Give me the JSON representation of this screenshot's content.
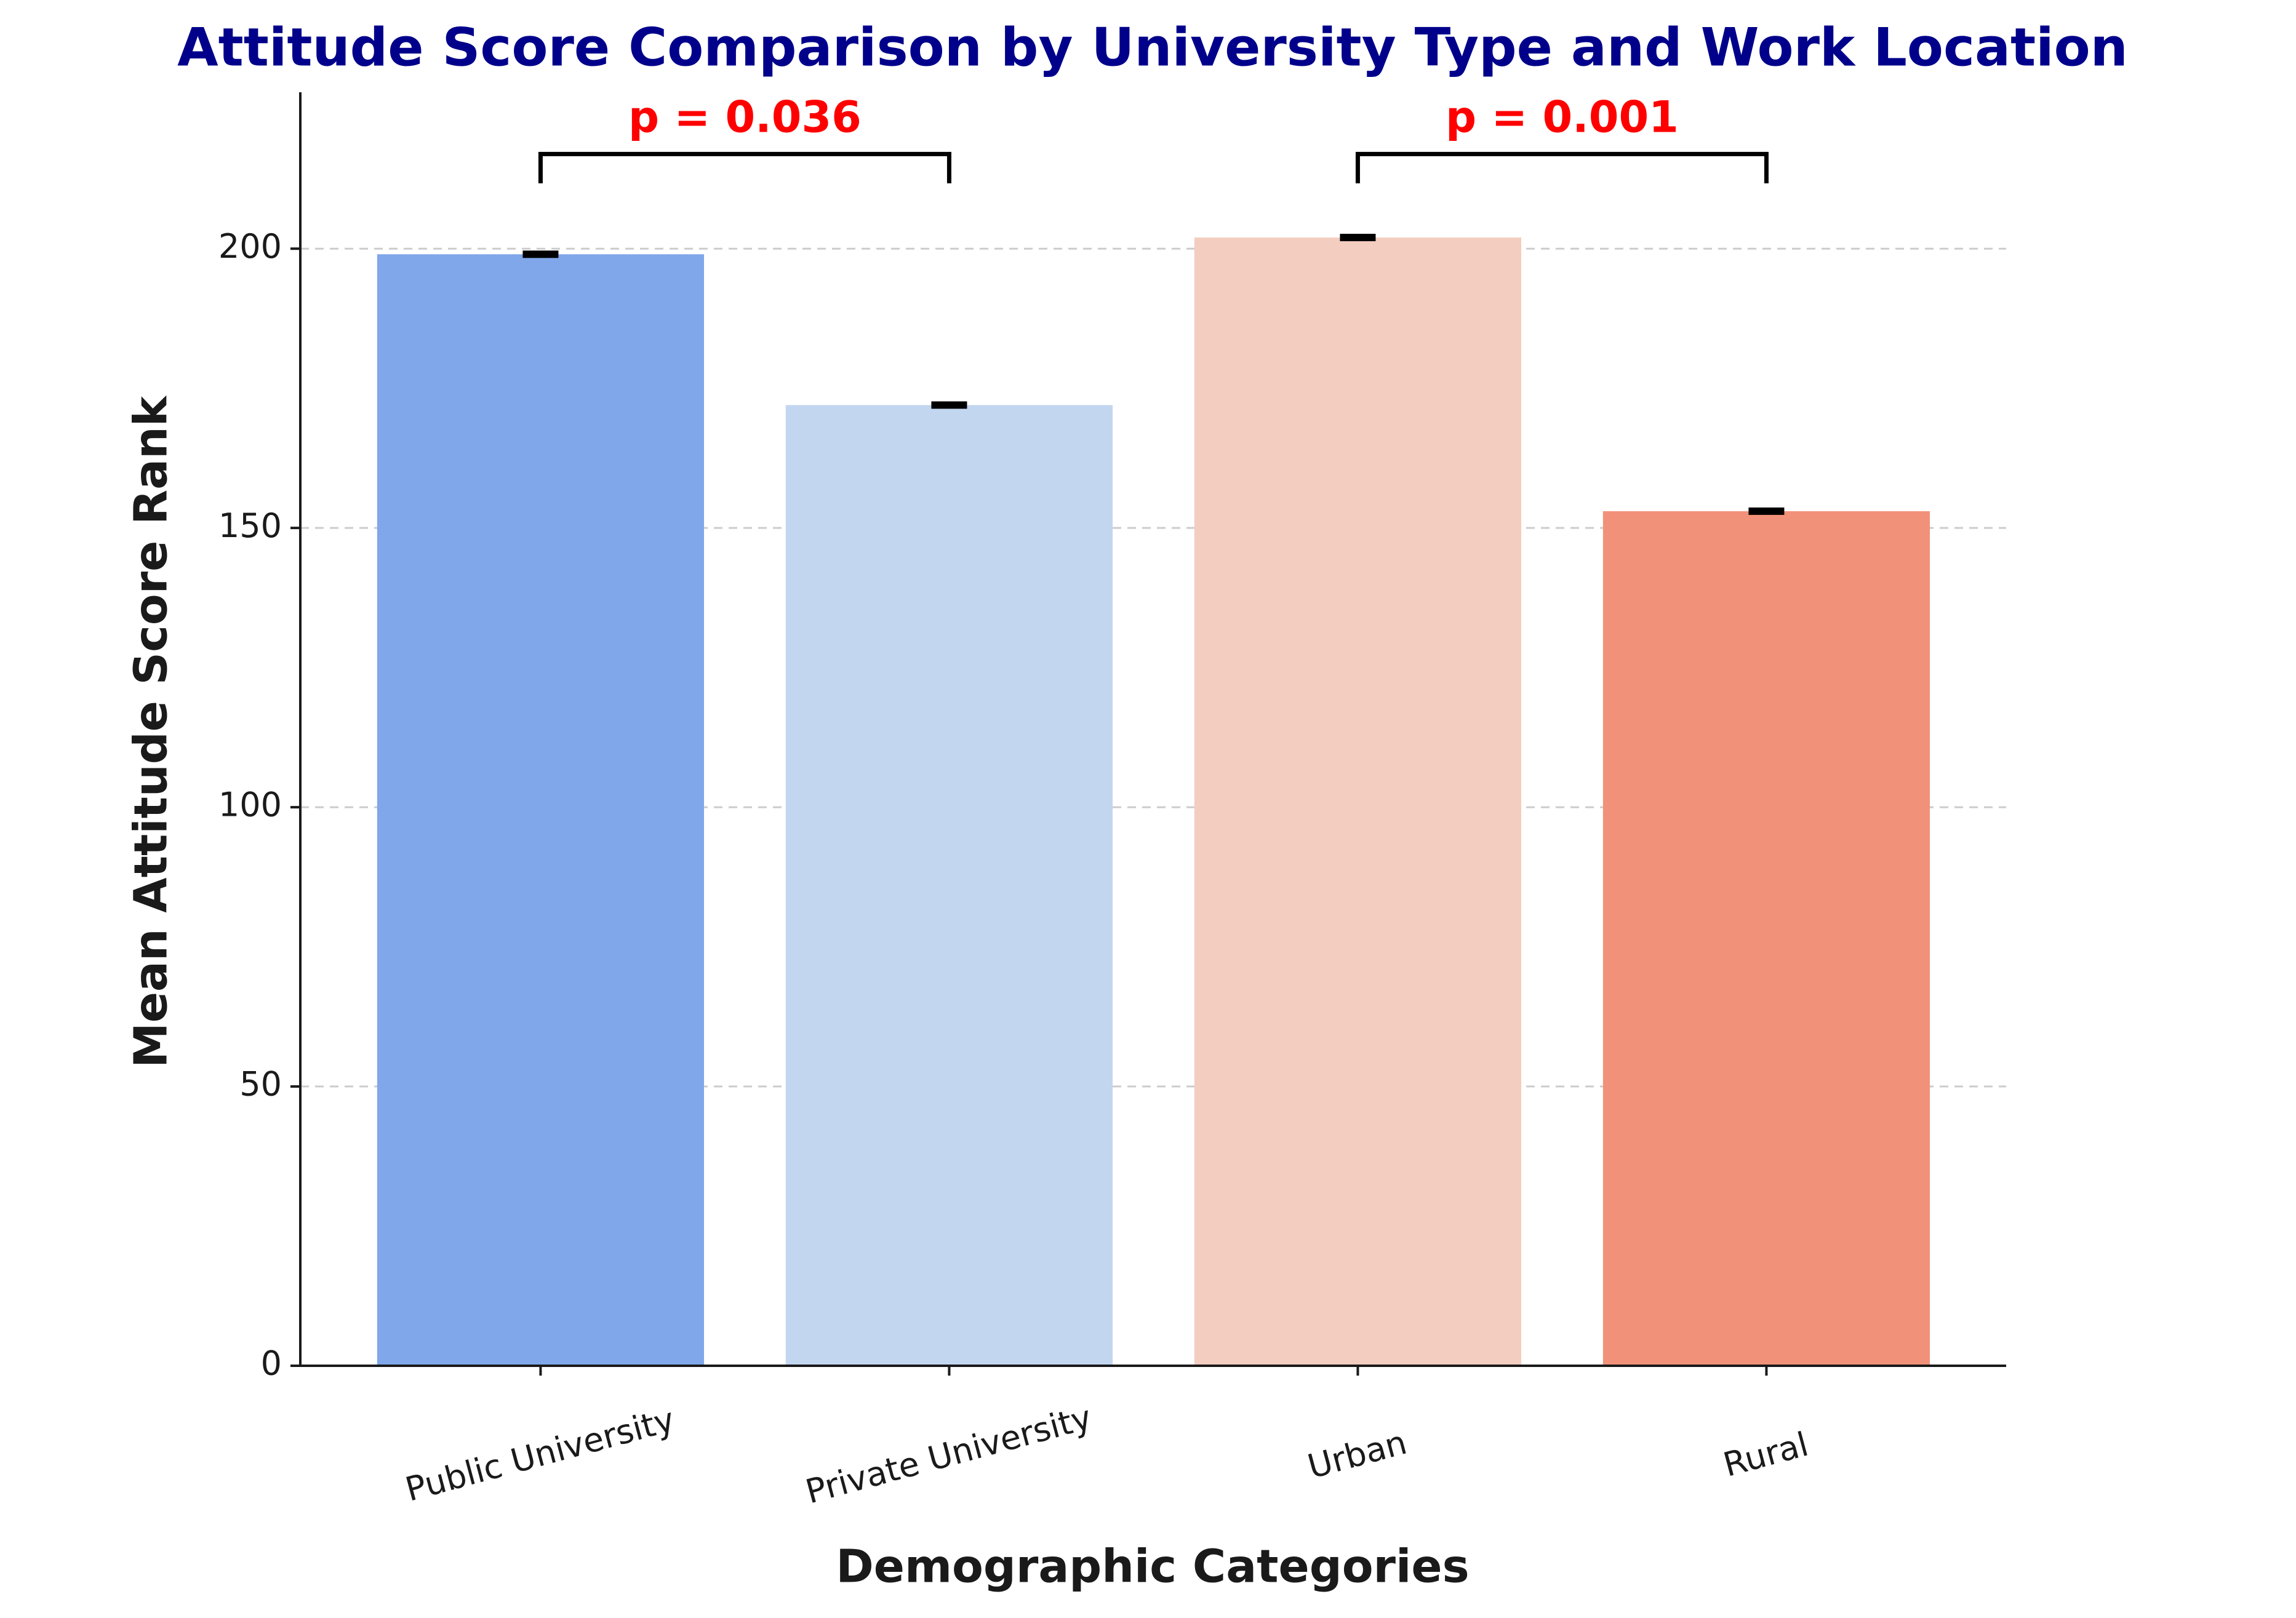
{
  "chart_data": {
    "type": "bar",
    "title": "Attitude Score Comparison by University Type and Work Location",
    "x_label": "Demographic Categories",
    "y_label": "Mean Attitude Score Rank",
    "categories": [
      "Public University",
      "Private University",
      "Urban",
      "Rural"
    ],
    "values": [
      199,
      172,
      202,
      153
    ],
    "errors": [
      0.5,
      0.5,
      0.5,
      0.5
    ],
    "colors": [
      "#7fa7ea",
      "#c2d6f0",
      "#f3cdc0",
      "#f29179"
    ],
    "ylim": [
      0,
      228
    ],
    "yticks": [
      0,
      50,
      100,
      150,
      200
    ],
    "grid": true,
    "annotations": [
      "p = 0.036",
      "p = 0.001"
    ]
  }
}
